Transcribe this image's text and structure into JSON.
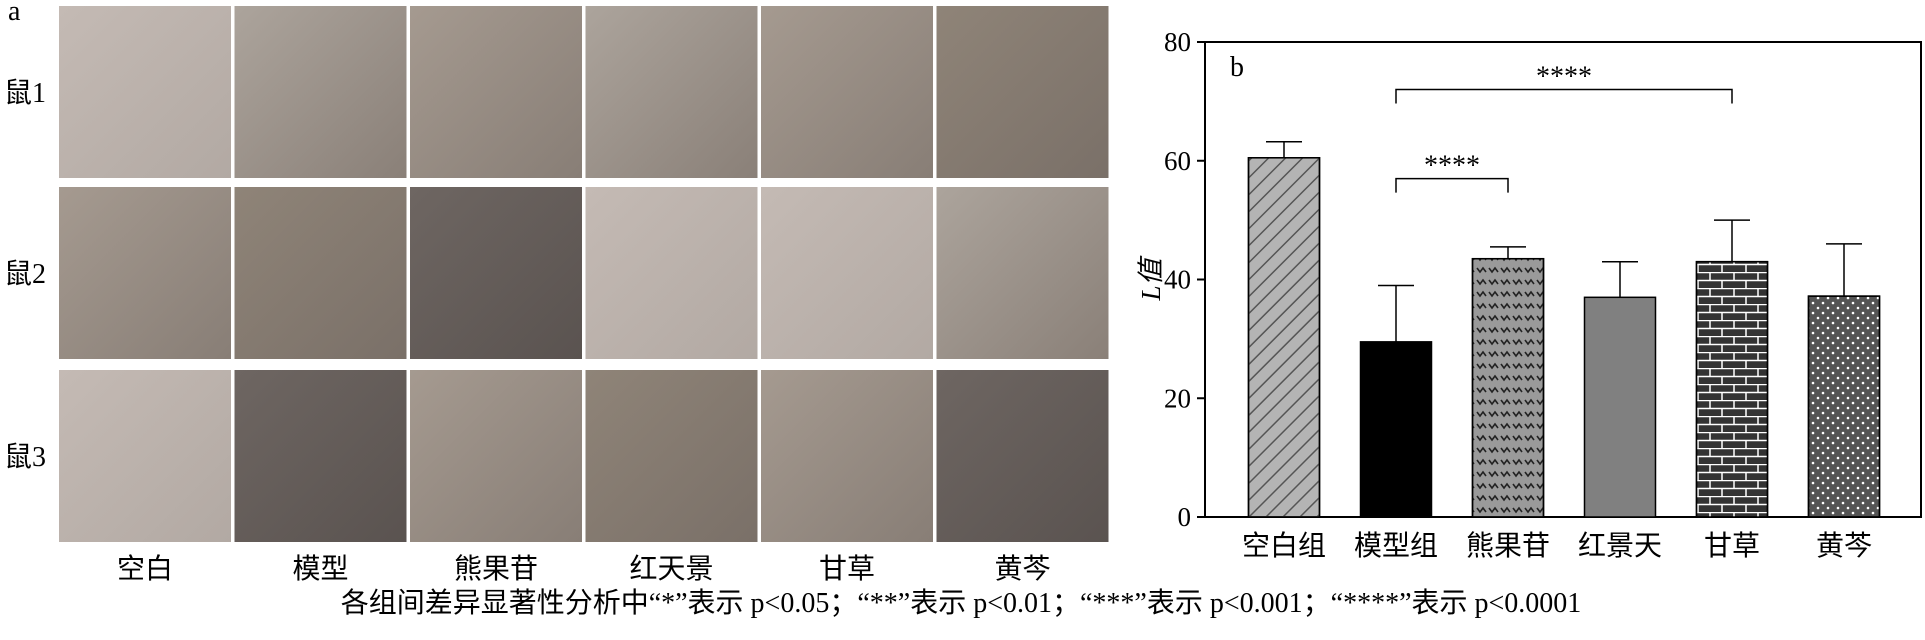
{
  "panel_a": {
    "label": "a",
    "row_labels": [
      "鼠1",
      "鼠2",
      "鼠3"
    ],
    "column_labels": [
      "空白",
      "模型",
      "熊果苷",
      "红天景",
      "甘草",
      "黄芩"
    ]
  },
  "chart_data": {
    "type": "bar",
    "label": "b",
    "y_label": "L值",
    "categories": [
      "空白组",
      "模型组",
      "熊果苷",
      "红景天",
      "甘草",
      "黄芩"
    ],
    "values": [
      60.5,
      29.5,
      43.5,
      37,
      43,
      37.2
    ],
    "errors": [
      2.7,
      9.5,
      2,
      6,
      7,
      8.8
    ],
    "colors": [
      "#b4b4b4",
      "#000000",
      "#9a9a9a",
      "#808080",
      "#333333",
      "#555555"
    ],
    "patterns": [
      "hatch",
      "solid",
      "zigzag",
      "solid",
      "brick",
      "dots"
    ],
    "ylim": [
      0,
      80
    ],
    "yticks": [
      0,
      20,
      40,
      60,
      80
    ],
    "significance": [
      {
        "from": 1,
        "to": 2,
        "label": "****"
      },
      {
        "from": 1,
        "to": 4,
        "label": "****"
      }
    ]
  },
  "caption": "各组间差异显著性分析中“*”表示 p<0.05；“**”表示 p<0.01；“***”表示 p<0.001；“****”表示 p<0.0001"
}
